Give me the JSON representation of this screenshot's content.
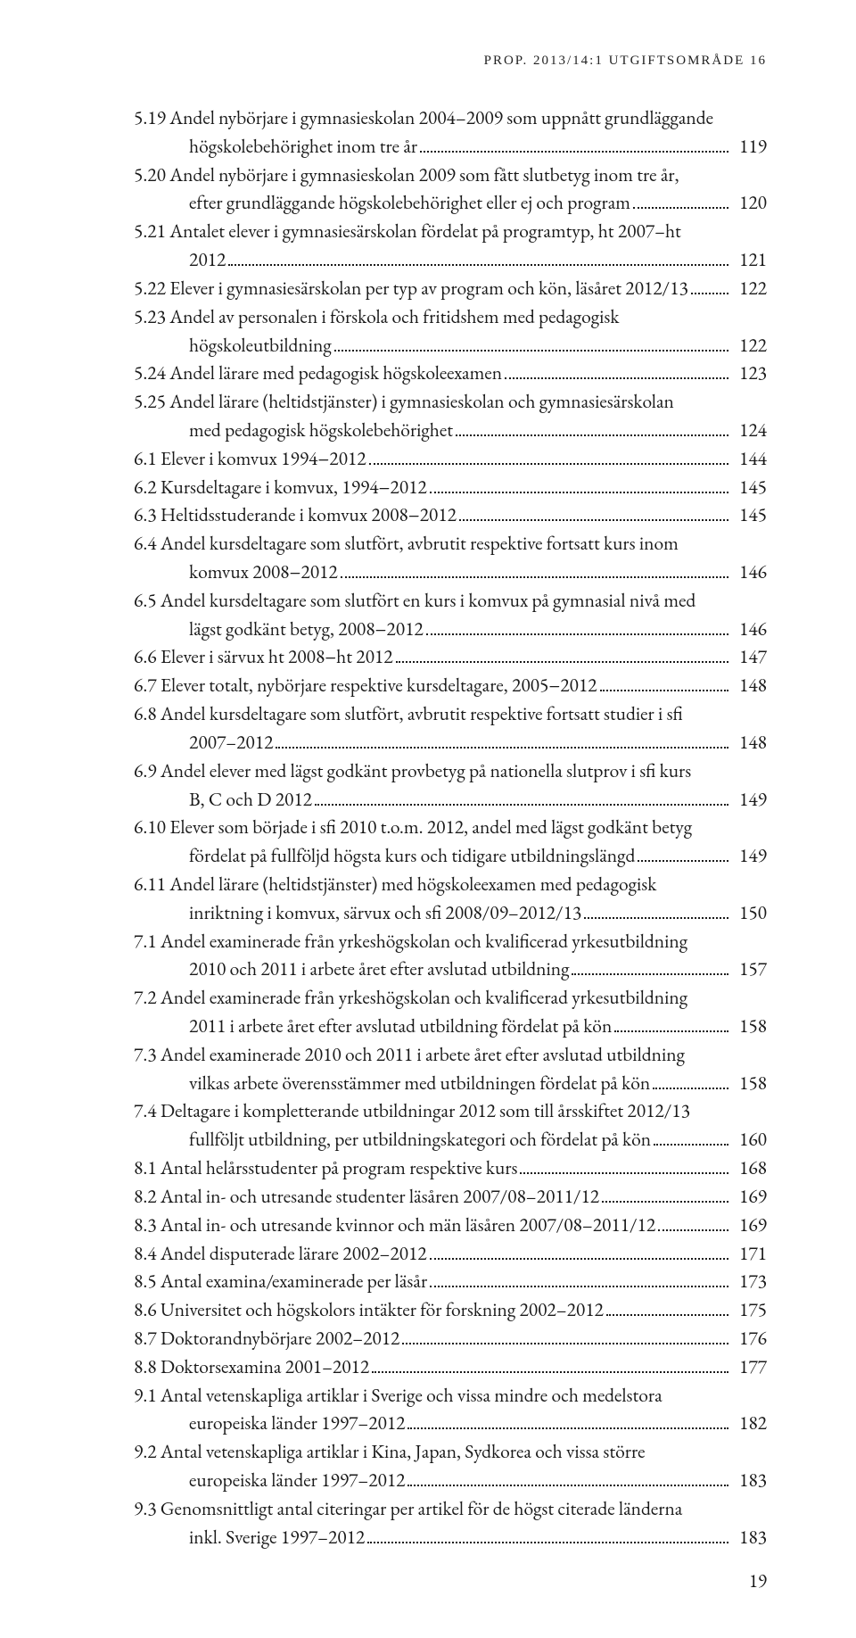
{
  "header": "PROP. 2013/14:1 UTGIFTSOMRÅDE 16",
  "page_number": "19",
  "toc_entries": [
    {
      "lines": [
        "5.19 Andel nybörjare i gymnasieskolan 2004–2009 som uppnått grundläggande",
        "högskolebehörighet inom tre år"
      ],
      "page": "119"
    },
    {
      "lines": [
        "5.20 Andel nybörjare i gymnasieskolan 2009 som fått slutbetyg inom tre år,",
        "efter grundläggande högskolebehörighet eller ej och program"
      ],
      "page": "120"
    },
    {
      "lines": [
        "5.21 Antalet elever i gymnasiesärskolan fördelat på programtyp, ht 2007–ht",
        "2012"
      ],
      "page": "121"
    },
    {
      "lines": [
        "5.22 Elever i gymnasiesärskolan per typ av program och kön, läsåret 2012/13"
      ],
      "page": "122"
    },
    {
      "lines": [
        "5.23 Andel av personalen i förskola och fritidshem med pedagogisk",
        "högskoleutbildning"
      ],
      "page": "122"
    },
    {
      "lines": [
        "5.24 Andel lärare med pedagogisk högskoleexamen"
      ],
      "page": "123"
    },
    {
      "lines": [
        "5.25 Andel lärare (heltidstjänster) i gymnasieskolan och gymnasiesärskolan",
        "med pedagogisk högskolebehörighet"
      ],
      "page": "124"
    },
    {
      "lines": [
        "6.1 Elever i komvux 1994−2012"
      ],
      "page": "144"
    },
    {
      "lines": [
        "6.2 Kursdeltagare i komvux, 1994−2012"
      ],
      "page": "145"
    },
    {
      "lines": [
        "6.3 Heltidsstuderande i komvux 2008−2012"
      ],
      "page": "145"
    },
    {
      "lines": [
        "6.4 Andel kursdeltagare som slutfört, avbrutit respektive fortsatt kurs inom",
        "komvux 2008−2012"
      ],
      "page": "146"
    },
    {
      "lines": [
        "6.5 Andel kursdeltagare som slutfört en kurs i komvux på gymnasial nivå med",
        "lägst godkänt betyg, 2008−2012"
      ],
      "page": "146"
    },
    {
      "lines": [
        "6.6 Elever i särvux ht 2008−ht 2012"
      ],
      "page": "147"
    },
    {
      "lines": [
        "6.7 Elever totalt, nybörjare respektive kursdeltagare, 2005−2012"
      ],
      "page": "148"
    },
    {
      "lines": [
        "6.8 Andel kursdeltagare som slutfört, avbrutit respektive fortsatt studier i sfi",
        "2007–2012"
      ],
      "page": "148"
    },
    {
      "lines": [
        "6.9 Andel elever med lägst godkänt provbetyg på nationella slutprov i sfi kurs",
        "B, C och D 2012"
      ],
      "page": "149"
    },
    {
      "lines": [
        "6.10 Elever som började i sfi 2010 t.o.m. 2012, andel med lägst godkänt betyg",
        "fördelat på fullföljd högsta kurs och tidigare utbildningslängd"
      ],
      "page": "149"
    },
    {
      "lines": [
        "6.11 Andel lärare (heltidstjänster) med högskoleexamen med pedagogisk",
        "inriktning i komvux, särvux och sfi 2008/09–2012/13"
      ],
      "page": "150"
    },
    {
      "lines": [
        "7.1 Andel examinerade från yrkeshögskolan och kvalificerad yrkesutbildning",
        "2010 och 2011 i arbete året efter avslutad utbildning"
      ],
      "page": "157"
    },
    {
      "lines": [
        "7.2 Andel examinerade från yrkeshögskolan och kvalificerad yrkesutbildning",
        "2011 i arbete året efter avslutad utbildning fördelat på kön"
      ],
      "page": "158"
    },
    {
      "lines": [
        "7.3 Andel examinerade 2010 och 2011 i arbete året efter avslutad utbildning",
        "vilkas arbete överensstämmer med utbildningen fördelat på kön"
      ],
      "page": "158"
    },
    {
      "lines": [
        "7.4 Deltagare i kompletterande utbildningar 2012 som till årsskiftet 2012/13",
        "fullföljt utbildning, per utbildningskategori och fördelat på kön"
      ],
      "page": "160"
    },
    {
      "lines": [
        "8.1 Antal helårsstudenter på program respektive kurs"
      ],
      "page": "168"
    },
    {
      "lines": [
        "8.2 Antal in- och utresande studenter läsåren 2007/08–2011/12"
      ],
      "page": "169"
    },
    {
      "lines": [
        "8.3 Antal in- och utresande kvinnor och män läsåren 2007/08–2011/12"
      ],
      "page": "169"
    },
    {
      "lines": [
        "8.4 Andel disputerade lärare 2002–2012"
      ],
      "page": "171"
    },
    {
      "lines": [
        "8.5 Antal examina/examinerade per läsår"
      ],
      "page": "173"
    },
    {
      "lines": [
        "8.6 Universitet och högskolors intäkter för forskning 2002–2012"
      ],
      "page": "175"
    },
    {
      "lines": [
        "8.7 Doktorandnybörjare 2002–2012"
      ],
      "page": "176"
    },
    {
      "lines": [
        "8.8 Doktorsexamina 2001–2012"
      ],
      "page": "177"
    },
    {
      "lines": [
        "9.1 Antal vetenskapliga artiklar i Sverige och vissa mindre och medelstora",
        "europeiska länder 1997–2012"
      ],
      "page": "182"
    },
    {
      "lines": [
        "9.2 Antal vetenskapliga artiklar i Kina, Japan, Sydkorea och vissa större",
        "europeiska länder 1997–2012"
      ],
      "page": "183"
    },
    {
      "lines": [
        "9.3 Genomsnittligt antal citeringar per artikel för de högst citerade länderna",
        "inkl. Sverige 1997–2012"
      ],
      "page": "183"
    }
  ]
}
